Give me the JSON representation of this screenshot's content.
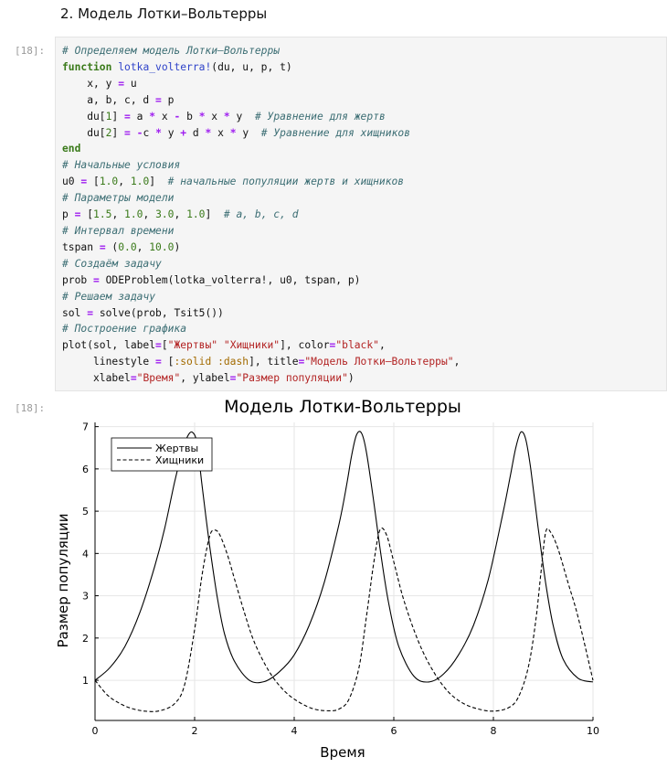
{
  "heading": "2. Модель Лотки–Вольтерры",
  "cell": {
    "input_prompt": "[18]:",
    "output_prompt": "[18]:",
    "code_lines": [
      [
        [
          "c",
          "# Определяем модель Лотки–Вольтерры"
        ]
      ],
      [
        [
          "k",
          "function"
        ],
        [
          "t",
          " "
        ],
        [
          "f",
          "lotka_volterra!"
        ],
        [
          "t",
          "(du, u, p, t)"
        ]
      ],
      [
        [
          "t",
          "    x, y "
        ],
        [
          "o",
          "="
        ],
        [
          "t",
          " u"
        ]
      ],
      [
        [
          "t",
          "    a, b, c, d "
        ],
        [
          "o",
          "="
        ],
        [
          "t",
          " p"
        ]
      ],
      [
        [
          "t",
          "    du["
        ],
        [
          "n",
          "1"
        ],
        [
          "t",
          "] "
        ],
        [
          "o",
          "="
        ],
        [
          "t",
          " a "
        ],
        [
          "o",
          "*"
        ],
        [
          "t",
          " x "
        ],
        [
          "o",
          "-"
        ],
        [
          "t",
          " b "
        ],
        [
          "o",
          "*"
        ],
        [
          "t",
          " x "
        ],
        [
          "o",
          "*"
        ],
        [
          "t",
          " y  "
        ],
        [
          "c",
          "# Уравнение для жертв"
        ]
      ],
      [
        [
          "t",
          "    du["
        ],
        [
          "n",
          "2"
        ],
        [
          "t",
          "] "
        ],
        [
          "o",
          "="
        ],
        [
          "t",
          " "
        ],
        [
          "o",
          "-"
        ],
        [
          "t",
          "c "
        ],
        [
          "o",
          "*"
        ],
        [
          "t",
          " y "
        ],
        [
          "o",
          "+"
        ],
        [
          "t",
          " d "
        ],
        [
          "o",
          "*"
        ],
        [
          "t",
          " x "
        ],
        [
          "o",
          "*"
        ],
        [
          "t",
          " y  "
        ],
        [
          "c",
          "# Уравнение для хищников"
        ]
      ],
      [
        [
          "k",
          "end"
        ]
      ],
      [
        [
          "c",
          "# Начальные условия"
        ]
      ],
      [
        [
          "t",
          "u0 "
        ],
        [
          "o",
          "="
        ],
        [
          "t",
          " ["
        ],
        [
          "n",
          "1.0"
        ],
        [
          "t",
          ", "
        ],
        [
          "n",
          "1.0"
        ],
        [
          "t",
          "]  "
        ],
        [
          "c",
          "# начальные популяции жертв и хищников"
        ]
      ],
      [
        [
          "c",
          "# Параметры модели"
        ]
      ],
      [
        [
          "t",
          "p "
        ],
        [
          "o",
          "="
        ],
        [
          "t",
          " ["
        ],
        [
          "n",
          "1.5"
        ],
        [
          "t",
          ", "
        ],
        [
          "n",
          "1.0"
        ],
        [
          "t",
          ", "
        ],
        [
          "n",
          "3.0"
        ],
        [
          "t",
          ", "
        ],
        [
          "n",
          "1.0"
        ],
        [
          "t",
          "]  "
        ],
        [
          "c",
          "# a, b, c, d"
        ]
      ],
      [
        [
          "c",
          "# Интервал времени"
        ]
      ],
      [
        [
          "t",
          "tspan "
        ],
        [
          "o",
          "="
        ],
        [
          "t",
          " ("
        ],
        [
          "n",
          "0.0"
        ],
        [
          "t",
          ", "
        ],
        [
          "n",
          "10.0"
        ],
        [
          "t",
          ")"
        ]
      ],
      [
        [
          "c",
          "# Создаём задачу"
        ]
      ],
      [
        [
          "t",
          "prob "
        ],
        [
          "o",
          "="
        ],
        [
          "t",
          " ODEProblem(lotka_volterra!, u0, tspan, p)"
        ]
      ],
      [
        [
          "c",
          "# Решаем задачу"
        ]
      ],
      [
        [
          "t",
          "sol "
        ],
        [
          "o",
          "="
        ],
        [
          "t",
          " solve(prob, Tsit5())"
        ]
      ],
      [
        [
          "c",
          "# Построение графика"
        ]
      ],
      [
        [
          "t",
          "plot(sol, label"
        ],
        [
          "o",
          "="
        ],
        [
          "t",
          "["
        ],
        [
          "s",
          "\"Жертвы\""
        ],
        [
          "t",
          " "
        ],
        [
          "s",
          "\"Хищники\""
        ],
        [
          "t",
          "], color"
        ],
        [
          "o",
          "="
        ],
        [
          "s",
          "\"black\""
        ],
        [
          "t",
          ","
        ]
      ],
      [
        [
          "t",
          "     linestyle "
        ],
        [
          "o",
          "="
        ],
        [
          "t",
          " ["
        ],
        [
          "y",
          ":solid"
        ],
        [
          "t",
          " "
        ],
        [
          "y",
          ":dash"
        ],
        [
          "t",
          "], title"
        ],
        [
          "o",
          "="
        ],
        [
          "s",
          "\"Модель Лотки–Вольтерры\""
        ],
        [
          "t",
          ","
        ]
      ],
      [
        [
          "t",
          "     xlabel"
        ],
        [
          "o",
          "="
        ],
        [
          "s",
          "\"Время\""
        ],
        [
          "t",
          ", ylabel"
        ],
        [
          "o",
          "="
        ],
        [
          "s",
          "\"Размер популяции\""
        ],
        [
          "t",
          ")"
        ]
      ]
    ]
  },
  "chart_data": {
    "type": "line",
    "title": "Модель Лотки-Вольтерры",
    "xlabel": "Время",
    "ylabel": "Размер популяции",
    "xlim": [
      0,
      10
    ],
    "ylim": [
      0.05,
      7.1
    ],
    "xticks": [
      "0",
      "2",
      "4",
      "6",
      "8",
      "10"
    ],
    "yticks": [
      "1",
      "2",
      "3",
      "4",
      "5",
      "6",
      "7"
    ],
    "grid": true,
    "legend_position": "top-left",
    "color": "#000000",
    "series": [
      {
        "name": "Жертвы",
        "linestyle": "solid",
        "x": [
          0,
          0.3,
          0.6,
          0.9,
          1.2,
          1.4,
          1.6,
          1.75,
          1.85,
          1.95,
          2.05,
          2.15,
          2.3,
          2.45,
          2.6,
          2.8,
          3.1,
          3.4,
          3.7,
          4.0,
          4.3,
          4.6,
          4.9,
          5.05,
          5.15,
          5.25,
          5.35,
          5.45,
          5.6,
          5.75,
          5.9,
          6.1,
          6.4,
          6.7,
          7.0,
          7.3,
          7.6,
          7.9,
          8.2,
          8.35,
          8.45,
          8.55,
          8.65,
          8.75,
          8.9,
          9.05,
          9.2,
          9.4,
          9.7,
          10.0
        ],
        "y": [
          1.0,
          1.3,
          1.8,
          2.6,
          3.7,
          4.6,
          5.7,
          6.4,
          6.75,
          6.87,
          6.6,
          5.6,
          4.2,
          3.0,
          2.1,
          1.45,
          1.0,
          0.97,
          1.2,
          1.6,
          2.3,
          3.3,
          4.7,
          5.6,
          6.3,
          6.8,
          6.85,
          6.4,
          5.2,
          3.9,
          2.8,
          1.8,
          1.1,
          0.96,
          1.15,
          1.6,
          2.3,
          3.4,
          5.0,
          5.9,
          6.5,
          6.87,
          6.7,
          6.0,
          4.6,
          3.3,
          2.3,
          1.5,
          1.05,
          0.96
        ]
      },
      {
        "name": "Хищники",
        "linestyle": "dash",
        "x": [
          0,
          0.25,
          0.5,
          0.75,
          1.0,
          1.3,
          1.6,
          1.8,
          2.0,
          2.15,
          2.3,
          2.4,
          2.5,
          2.65,
          2.8,
          3.0,
          3.2,
          3.5,
          3.8,
          4.1,
          4.4,
          4.7,
          4.9,
          5.1,
          5.3,
          5.45,
          5.6,
          5.72,
          5.85,
          6.0,
          6.2,
          6.5,
          6.8,
          7.1,
          7.4,
          7.7,
          8.0,
          8.3,
          8.5,
          8.7,
          8.85,
          8.95,
          9.05,
          9.15,
          9.3,
          9.5,
          9.7,
          10.0
        ],
        "y": [
          1.0,
          0.65,
          0.45,
          0.33,
          0.27,
          0.28,
          0.45,
          0.9,
          2.2,
          3.5,
          4.4,
          4.55,
          4.45,
          4.0,
          3.4,
          2.6,
          1.9,
          1.2,
          0.75,
          0.48,
          0.32,
          0.28,
          0.32,
          0.55,
          1.3,
          2.5,
          3.8,
          4.55,
          4.45,
          3.8,
          2.9,
          1.9,
          1.2,
          0.72,
          0.45,
          0.32,
          0.27,
          0.35,
          0.6,
          1.3,
          2.4,
          3.5,
          4.5,
          4.5,
          4.1,
          3.3,
          2.5,
          1.0
        ]
      }
    ]
  }
}
